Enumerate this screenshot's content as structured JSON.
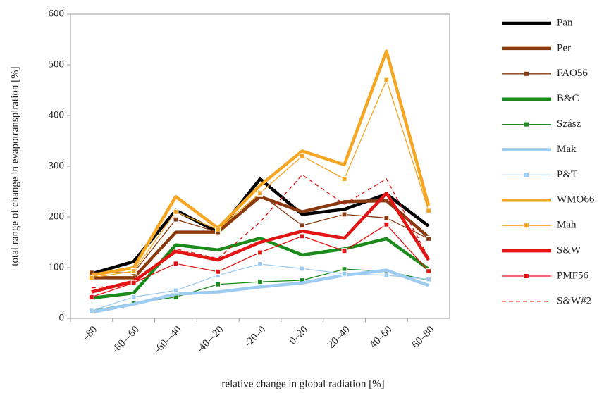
{
  "chart_data": {
    "type": "line",
    "x_label": "relative change in global radiation [%]",
    "y_label": "total range of change in evapotranspiration [%]",
    "categories": [
      "–80",
      "-80–-60",
      "-60–-40",
      "-40–-20",
      "-20–0",
      "0–20",
      "20–40",
      "40–60",
      "60–80"
    ],
    "ylim": [
      0,
      600
    ],
    "yticks": [
      0,
      100,
      200,
      300,
      400,
      500,
      600
    ],
    "series": [
      {
        "name": "Pan",
        "color": "#000000",
        "style": "thick",
        "values": [
          88,
          112,
          213,
          170,
          275,
          205,
          215,
          245,
          182
        ]
      },
      {
        "name": "Per",
        "color": "#8b3a0f",
        "style": "thick",
        "values": [
          80,
          80,
          170,
          170,
          240,
          210,
          230,
          232,
          160
        ]
      },
      {
        "name": "FAO56",
        "color": "#8b3a0f",
        "style": "marker",
        "values": [
          90,
          90,
          195,
          170,
          245,
          183,
          205,
          198,
          157
        ]
      },
      {
        "name": "B&C",
        "color": "#1a8a1a",
        "style": "thick",
        "values": [
          40,
          50,
          145,
          135,
          158,
          125,
          137,
          157,
          97
        ]
      },
      {
        "name": "Szász",
        "color": "#1a8a1a",
        "style": "marker",
        "values": [
          15,
          30,
          42,
          67,
          72,
          75,
          97,
          93,
          75
        ]
      },
      {
        "name": "Mak",
        "color": "#9ecbf0",
        "style": "thick",
        "values": [
          12,
          28,
          48,
          52,
          62,
          70,
          85,
          95,
          65
        ]
      },
      {
        "name": "P&T",
        "color": "#9ecbf0",
        "style": "marker",
        "values": [
          15,
          42,
          55,
          85,
          107,
          98,
          88,
          85,
          77
        ]
      },
      {
        "name": "WMO66",
        "color": "#f5a623",
        "style": "thick",
        "values": [
          85,
          100,
          240,
          178,
          262,
          330,
          303,
          527,
          222
        ]
      },
      {
        "name": "Mah",
        "color": "#f5a623",
        "style": "marker",
        "values": [
          80,
          93,
          210,
          175,
          247,
          320,
          275,
          470,
          212
        ]
      },
      {
        "name": "S&W",
        "color": "#e31414",
        "style": "thick",
        "values": [
          52,
          73,
          132,
          115,
          150,
          172,
          158,
          247,
          115
        ]
      },
      {
        "name": "PMF56",
        "color": "#e31414",
        "style": "marker",
        "values": [
          42,
          70,
          108,
          92,
          130,
          162,
          133,
          185,
          93
        ]
      },
      {
        "name": "S&W#2",
        "color": "#e31414",
        "style": "dashed",
        "values": [
          60,
          68,
          137,
          118,
          190,
          283,
          225,
          275,
          120
        ]
      }
    ]
  }
}
